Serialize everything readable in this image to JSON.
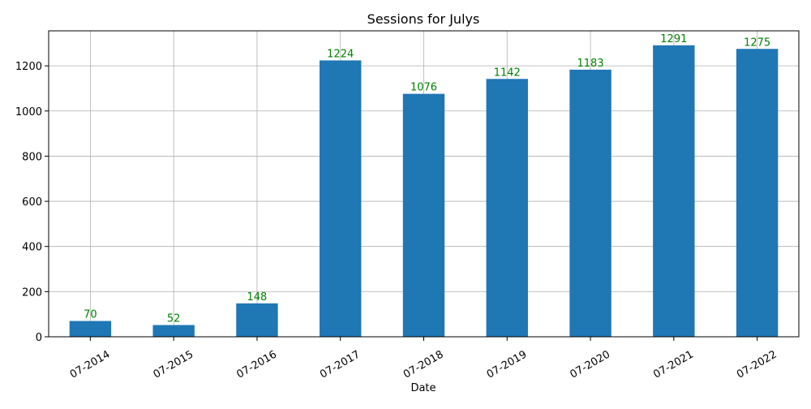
{
  "chart_data": {
    "type": "bar",
    "title": "Sessions for Julys",
    "xlabel": "Date",
    "ylabel": "",
    "categories": [
      "07-2014",
      "07-2015",
      "07-2016",
      "07-2017",
      "07-2018",
      "07-2019",
      "07-2020",
      "07-2021",
      "07-2022"
    ],
    "values": [
      70,
      52,
      148,
      1224,
      1076,
      1142,
      1183,
      1291,
      1275
    ],
    "ylim": [
      0,
      1355
    ],
    "yticks": [
      0,
      200,
      400,
      600,
      800,
      1000,
      1200
    ],
    "grid": true,
    "bar_color": "#1f77b4",
    "label_color": "#008000"
  }
}
